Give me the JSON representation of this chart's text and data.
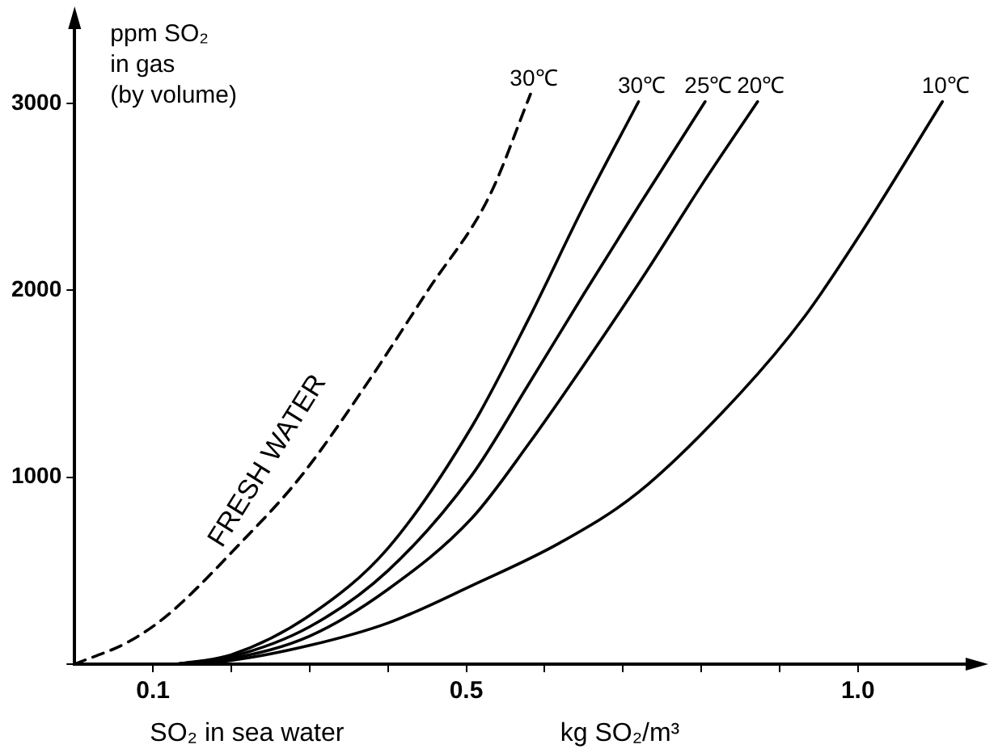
{
  "chart_data": {
    "type": "line",
    "xlabel": "SO₂ in sea water",
    "ylabel": "ppm SO₂ in gas (by volume)",
    "annotations": [
      "FRESH WATER",
      "kg SO₂/m³"
    ],
    "xlim": [
      0,
      1.15
    ],
    "xticks": [
      {
        "value": 0.1,
        "label": "0.1"
      },
      {
        "value": 0.2,
        "label": null
      },
      {
        "value": 0.3,
        "label": null
      },
      {
        "value": 0.4,
        "label": null
      },
      {
        "value": 0.5,
        "label": "0.5"
      },
      {
        "value": 0.6,
        "label": null
      },
      {
        "value": 0.7,
        "label": null
      },
      {
        "value": 0.8,
        "label": null
      },
      {
        "value": 0.9,
        "label": null
      },
      {
        "value": 1.0,
        "label": "1.0"
      }
    ],
    "ylim": [
      0,
      3450
    ],
    "yticks": [
      {
        "value": 0,
        "label": null
      },
      1000,
      2000,
      3000
    ],
    "grid": false,
    "legend": false,
    "marker": "none",
    "series": [
      {
        "name": "30℃",
        "color": "#000000",
        "line_style": "dashed",
        "x": [
          0,
          0.069,
          0.118,
          0.21,
          0.288,
          0.373,
          0.451,
          0.529,
          0.582
        ],
        "values": [
          0,
          120,
          260,
          640,
          1000,
          1500,
          2000,
          2500,
          3050
        ]
      },
      {
        "name": "30℃",
        "color": "#000000",
        "line_style": "solid",
        "x": [
          0.13,
          0.2,
          0.3,
          0.4,
          0.507,
          0.58,
          0.65,
          0.72
        ],
        "values": [
          0,
          50,
          260,
          620,
          1270,
          1850,
          2450,
          3010
        ]
      },
      {
        "name": "25℃",
        "color": "#000000",
        "line_style": "solid",
        "x": [
          0.13,
          0.2,
          0.3,
          0.4,
          0.507,
          0.58,
          0.65,
          0.72,
          0.805
        ],
        "values": [
          0,
          40,
          200,
          500,
          1010,
          1500,
          1980,
          2450,
          3010
        ]
      },
      {
        "name": "20℃",
        "color": "#000000",
        "line_style": "solid",
        "x": [
          0.13,
          0.2,
          0.3,
          0.4,
          0.507,
          0.58,
          0.65,
          0.73,
          0.8,
          0.872
        ],
        "values": [
          0,
          30,
          150,
          400,
          780,
          1180,
          1600,
          2100,
          2560,
          3010
        ]
      },
      {
        "name": "10℃",
        "color": "#000000",
        "line_style": "solid",
        "x": [
          0.13,
          0.2,
          0.3,
          0.4,
          0.507,
          0.62,
          0.72,
          0.85,
          0.932,
          1.003,
          1.108
        ],
        "values": [
          0,
          20,
          100,
          220,
          420,
          650,
          920,
          1450,
          1860,
          2300,
          3010
        ]
      }
    ]
  }
}
